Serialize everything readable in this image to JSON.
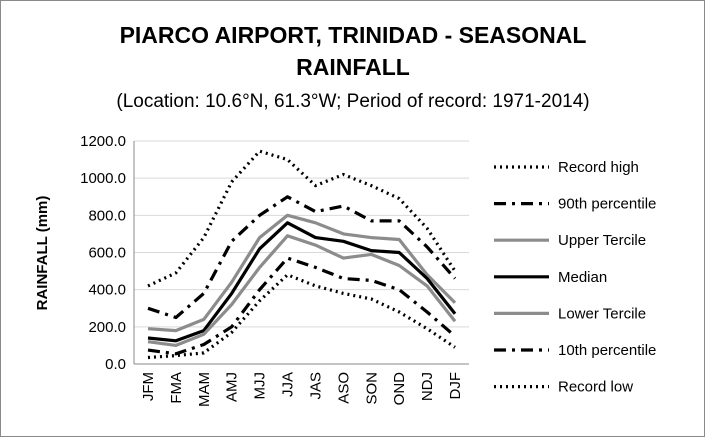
{
  "chart_data": {
    "type": "line",
    "title": "PIARCO AIRPORT, TRINIDAD - SEASONAL RAINFALL",
    "title_lines": [
      "PIARCO AIRPORT, TRINIDAD - SEASONAL",
      "RAINFALL"
    ],
    "subtitle": "(Location: 10.6°N, 61.3°W; Period of record: 1971-2014)",
    "xlabel": "",
    "ylabel": "RAINFALL (mm)",
    "ylim": [
      0,
      1200
    ],
    "yticks": [
      "0.0",
      "200.0",
      "400.0",
      "600.0",
      "800.0",
      "1000.0",
      "1200.0"
    ],
    "grid": true,
    "legend_position": "right",
    "categories": [
      "JFM",
      "FMA",
      "MAM",
      "AMJ",
      "MJJ",
      "JJA",
      "JAS",
      "ASO",
      "SON",
      "OND",
      "NDJ",
      "DJF"
    ],
    "series": [
      {
        "name": "Record high",
        "style": "dotted",
        "color": "#000000",
        "values": [
          420,
          490,
          680,
          980,
          1145,
          1100,
          960,
          1020,
          960,
          890,
          730,
          500
        ]
      },
      {
        "name": "90th percentile",
        "style": "dashdot",
        "color": "#000000",
        "values": [
          300,
          250,
          380,
          660,
          800,
          900,
          820,
          850,
          770,
          770,
          630,
          460
        ]
      },
      {
        "name": "Upper Tercile",
        "style": "solid",
        "color": "#8c8c8c",
        "values": [
          190,
          180,
          240,
          440,
          680,
          800,
          760,
          700,
          680,
          670,
          480,
          330
        ]
      },
      {
        "name": "Median",
        "style": "solid",
        "color": "#000000",
        "values": [
          140,
          125,
          180,
          380,
          620,
          760,
          680,
          660,
          610,
          600,
          460,
          270
        ]
      },
      {
        "name": "Lower Tercile",
        "style": "solid",
        "color": "#8c8c8c",
        "values": [
          120,
          100,
          160,
          320,
          520,
          690,
          640,
          570,
          590,
          530,
          420,
          230
        ]
      },
      {
        "name": "10th percentile",
        "style": "dashdot",
        "color": "#000000",
        "values": [
          75,
          55,
          105,
          200,
          400,
          570,
          520,
          460,
          450,
          400,
          280,
          150
        ]
      },
      {
        "name": "Record low",
        "style": "dotted",
        "color": "#000000",
        "values": [
          35,
          45,
          60,
          170,
          340,
          480,
          420,
          380,
          350,
          280,
          190,
          90
        ]
      }
    ]
  }
}
